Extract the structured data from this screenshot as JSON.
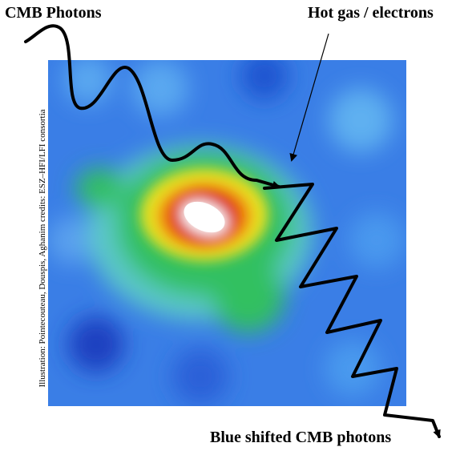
{
  "labels": {
    "incoming": "CMB Photons",
    "cluster": "Hot gas / electrons",
    "outgoing": "Blue shifted CMB photons"
  },
  "credit": "Illustration: Pointecouteau, Douspis, Aghanim  credits: ESZ–HFI/LFI consortia"
}
